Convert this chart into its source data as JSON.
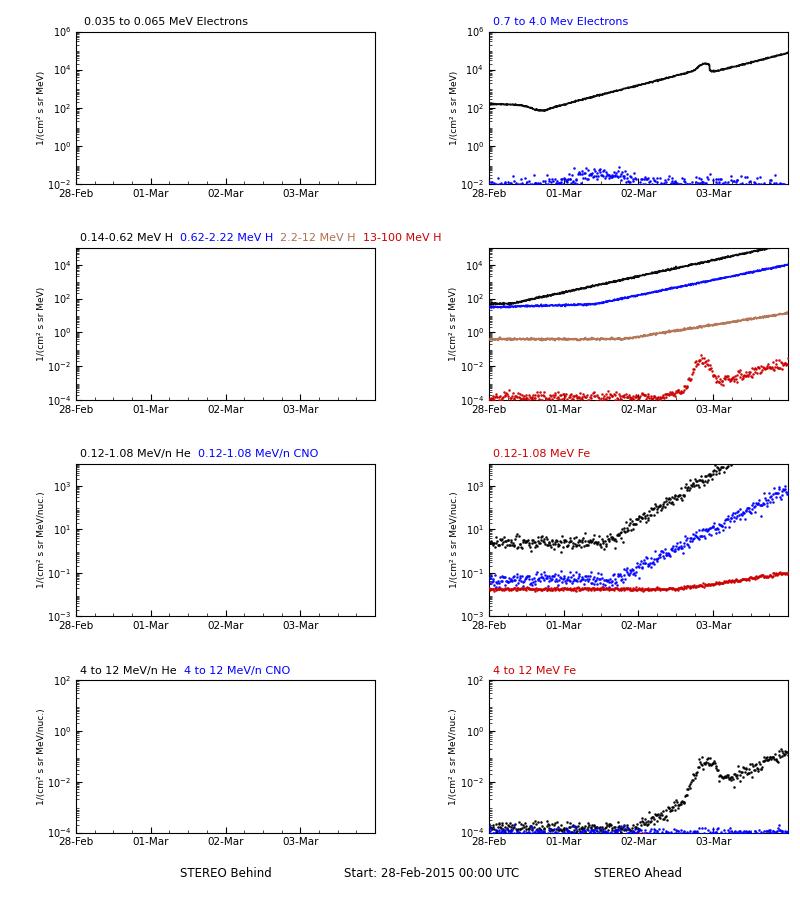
{
  "title_center": "Start: 28-Feb-2015 00:00 UTC",
  "left_label": "STEREO Behind",
  "right_label": "STEREO Ahead",
  "date_ticks": [
    "28-Feb",
    "01-Mar",
    "02-Mar",
    "03-Mar"
  ],
  "rows": [
    {
      "titles_left": [
        {
          "text": "0.035 to 0.065 MeV Electrons",
          "color": "#000000"
        },
        {
          "text": "  0.7 to 4.0 Mev Electrons",
          "color": "#0000ff"
        }
      ],
      "titles_right": [],
      "left_ylim": [
        -2,
        6
      ],
      "left_ytick_exp": [
        -2,
        0,
        2,
        4,
        6
      ],
      "left_ylabel": "1/(cm² s sr MeV)",
      "right_ylim": [
        -2,
        6
      ],
      "right_ytick_exp": [
        -2,
        0,
        2,
        4,
        6
      ],
      "right_ylabel": "1/(cm² s sr MeV)",
      "right_series": [
        {
          "color": "#000000",
          "style": "solid",
          "profile": "electrons_black"
        },
        {
          "color": "#0000ff",
          "style": "dots",
          "profile": "electrons_blue"
        }
      ]
    },
    {
      "titles_left": [
        {
          "text": "0.14-0.62 MeV H",
          "color": "#000000"
        },
        {
          "text": "  0.62-2.22 MeV H",
          "color": "#0000ff"
        },
        {
          "text": "  2.2-12 MeV H",
          "color": "#b07050"
        },
        {
          "text": "  13-100 MeV H",
          "color": "#cc0000"
        }
      ],
      "titles_right": [],
      "left_ylim": [
        -4,
        5
      ],
      "left_ytick_exp": [
        -4,
        -2,
        0,
        2,
        4
      ],
      "left_ylabel": "1/(cm² s sr MeV)",
      "right_ylim": [
        -4,
        5
      ],
      "right_ytick_exp": [
        -4,
        -2,
        0,
        2,
        4
      ],
      "right_ylabel": "1/(cm² s sr MeV)",
      "right_series": [
        {
          "color": "#000000",
          "style": "solid",
          "profile": "proton_black"
        },
        {
          "color": "#0000ff",
          "style": "solid",
          "profile": "proton_blue"
        },
        {
          "color": "#b07050",
          "style": "solid",
          "profile": "proton_brown"
        },
        {
          "color": "#cc0000",
          "style": "dots",
          "profile": "proton_red"
        }
      ]
    },
    {
      "titles_left": [
        {
          "text": "0.12-1.08 MeV/n He",
          "color": "#000000"
        },
        {
          "text": "  0.12-1.08 MeV/n CNO",
          "color": "#0000ff"
        },
        {
          "text": "  0.12-1.08 MeV Fe",
          "color": "#cc0000"
        }
      ],
      "titles_right": [],
      "left_ylim": [
        -3,
        4
      ],
      "left_ytick_exp": [
        -3,
        -1,
        1,
        3
      ],
      "left_ylabel": "1/(cm² s sr MeV/nuc.)",
      "right_ylim": [
        -3,
        4
      ],
      "right_ytick_exp": [
        -3,
        -1,
        1,
        3
      ],
      "right_ylabel": "1/(cm² s sr MeV/nuc.)",
      "right_series": [
        {
          "color": "#000000",
          "style": "dots",
          "profile": "he_black"
        },
        {
          "color": "#0000ff",
          "style": "dots",
          "profile": "he_blue"
        },
        {
          "color": "#cc0000",
          "style": "dots",
          "profile": "he_red"
        }
      ]
    },
    {
      "titles_left": [
        {
          "text": "4 to 12 MeV/n He",
          "color": "#000000"
        },
        {
          "text": "  4 to 12 MeV/n CNO",
          "color": "#0000ff"
        },
        {
          "text": "  4 to 12 MeV Fe",
          "color": "#cc0000"
        }
      ],
      "titles_right": [],
      "left_ylim": [
        -4,
        2
      ],
      "left_ytick_exp": [
        -4,
        -2,
        0,
        2
      ],
      "left_ylabel": "1/(cm² s sr MeV/nuc.)",
      "right_ylim": [
        -4,
        2
      ],
      "right_ytick_exp": [
        -4,
        -2,
        0,
        2
      ],
      "right_ylabel": "1/(cm² s sr MeV/nuc.)",
      "right_series": [
        {
          "color": "#000000",
          "style": "dots",
          "profile": "fe4_black"
        },
        {
          "color": "#0000ff",
          "style": "dots",
          "profile": "fe4_blue"
        },
        {
          "color": "#cc0000",
          "style": "dots",
          "profile": "fe4_red"
        }
      ]
    }
  ],
  "n_points": 800,
  "xmax": 4.0
}
